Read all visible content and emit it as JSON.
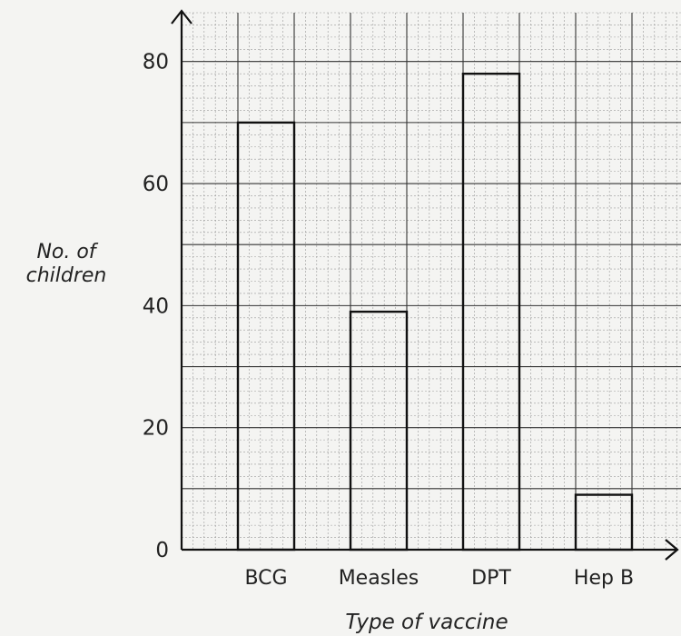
{
  "chart_data": {
    "type": "bar",
    "title": "",
    "xlabel": "Type of vaccine",
    "ylabel_line1": "No. of",
    "ylabel_line2": "children",
    "categories": [
      "BCG",
      "Measles",
      "DPT",
      "Hep B"
    ],
    "values": [
      70,
      39,
      78,
      9
    ],
    "ylim": [
      0,
      88
    ],
    "yticks": [
      0,
      20,
      40,
      60,
      80
    ],
    "grid": true
  }
}
